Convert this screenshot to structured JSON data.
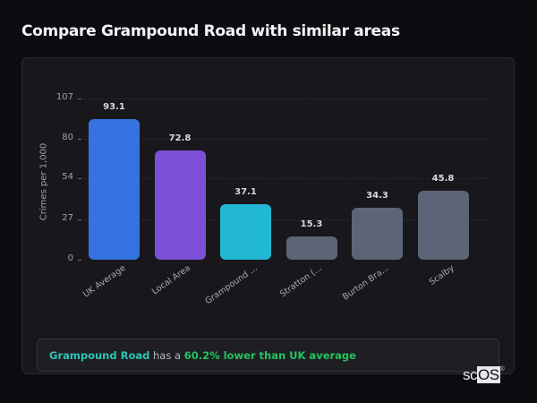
{
  "header": {
    "title": "Compare Grampound Road with similar areas"
  },
  "chart_data": {
    "type": "bar",
    "title": "Compare Grampound Road with similar areas",
    "xlabel": "",
    "ylabel": "Crimes per 1,000",
    "ylim": [
      0,
      107
    ],
    "yticks": [
      0,
      27,
      54,
      80,
      107
    ],
    "grid": "dashed horizontal",
    "legend": "none",
    "categories": [
      "UK Average",
      "Local Area",
      "Grampound ...",
      "Stratton (...",
      "Burton Bra...",
      "Scalby"
    ],
    "values": [
      93.1,
      72.8,
      37.1,
      15.3,
      34.3,
      45.8
    ],
    "value_labels": [
      "93.1",
      "72.8",
      "37.1",
      "15.3",
      "34.3",
      "45.8"
    ],
    "colors": [
      "#3574e0",
      "#7b4fd6",
      "#22b8d4",
      "#5b6577",
      "#5b6577",
      "#5b6577"
    ]
  },
  "summary": {
    "area": "Grampound Road",
    "middle": " has a ",
    "highlight": "60.2% lower than UK average"
  },
  "logo": {
    "prefix": "sc",
    "boxed": "OS",
    "mark": "®"
  }
}
